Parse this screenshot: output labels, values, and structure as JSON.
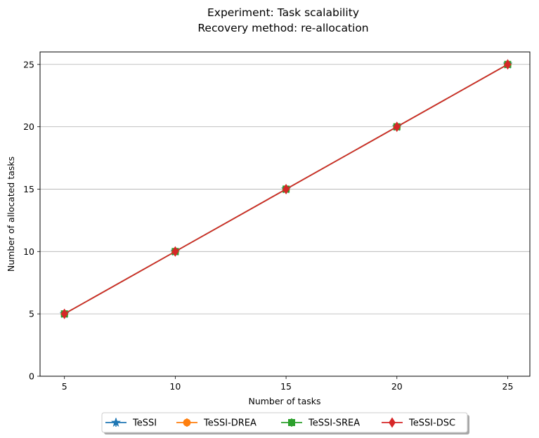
{
  "chart_data": {
    "type": "line",
    "title_lines": [
      "Experiment: Task scalability",
      "Recovery method: re-allocation"
    ],
    "xlabel": "Number of tasks",
    "ylabel": "Number of allocated tasks",
    "x": [
      5,
      10,
      15,
      20,
      25
    ],
    "xticks": [
      "5",
      "10",
      "15",
      "20",
      "25"
    ],
    "yticks": [
      "0",
      "5",
      "10",
      "15",
      "20",
      "25"
    ],
    "xlim": [
      3.9,
      26.0
    ],
    "ylim": [
      0,
      26
    ],
    "grid": "y-major",
    "legend_placement": "bottom-center",
    "series": [
      {
        "name": "TeSSI",
        "values": [
          5,
          10,
          15,
          20,
          25
        ],
        "color": "#1f77b4",
        "marker": "star"
      },
      {
        "name": "TeSSI-DREA",
        "values": [
          5,
          10,
          15,
          20,
          25
        ],
        "color": "#ff7f0e",
        "marker": "circle"
      },
      {
        "name": "TeSSI-SREA",
        "values": [
          5,
          10,
          15,
          20,
          25
        ],
        "color": "#2ca02c",
        "marker": "square"
      },
      {
        "name": "TeSSI-DSC",
        "values": [
          5,
          10,
          15,
          20,
          25
        ],
        "color": "#d62728",
        "marker": "diamond"
      }
    ]
  }
}
